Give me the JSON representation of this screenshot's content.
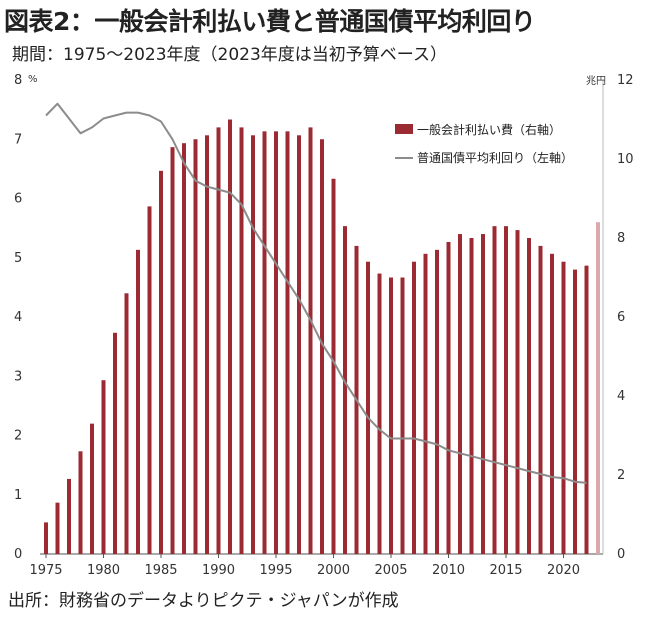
{
  "header": {
    "title": "図表2：一般会計利払い費と普通国債平均利回り",
    "subtitle": "期間：1975～2023年度（2023年度は当初予算ベース）"
  },
  "footer": {
    "source": "出所：財務省のデータよりピクテ・ジャパンが作成"
  },
  "chart_data": {
    "type": "bar",
    "left_axis": {
      "unit": "%",
      "min": 0,
      "max": 8,
      "ticks": [
        "0",
        "1",
        "2",
        "3",
        "4",
        "5",
        "6",
        "7",
        "8"
      ]
    },
    "right_axis": {
      "unit": "兆円",
      "min": 0,
      "max": 12,
      "ticks": [
        "0",
        "2",
        "4",
        "6",
        "8",
        "10",
        "12"
      ]
    },
    "x_ticks": [
      "1975",
      "1980",
      "1985",
      "1990",
      "1995",
      "2000",
      "2005",
      "2010",
      "2015",
      "2020"
    ],
    "legend_placement": "top-right",
    "colors": {
      "bar": "#9b2a33",
      "bar_forecast": "#dba9ad",
      "line": "#8c8c8c"
    },
    "grid": false,
    "series": [
      {
        "name": "一般会計利払い費（右軸）",
        "type": "bar",
        "axis": "right",
        "x": [
          1975,
          1976,
          1977,
          1978,
          1979,
          1980,
          1981,
          1982,
          1983,
          1984,
          1985,
          1986,
          1987,
          1988,
          1989,
          1990,
          1991,
          1992,
          1993,
          1994,
          1995,
          1996,
          1997,
          1998,
          1999,
          2000,
          2001,
          2002,
          2003,
          2004,
          2005,
          2006,
          2007,
          2008,
          2009,
          2010,
          2011,
          2012,
          2013,
          2014,
          2015,
          2016,
          2017,
          2018,
          2019,
          2020,
          2021,
          2022,
          2023
        ],
        "values": [
          0.8,
          1.3,
          1.9,
          2.6,
          3.3,
          4.4,
          5.6,
          6.6,
          7.7,
          8.8,
          9.7,
          10.3,
          10.4,
          10.5,
          10.6,
          10.8,
          11.0,
          10.8,
          10.6,
          10.7,
          10.7,
          10.7,
          10.6,
          10.8,
          10.5,
          9.5,
          8.3,
          7.8,
          7.4,
          7.1,
          7.0,
          7.0,
          7.4,
          7.6,
          7.7,
          7.9,
          8.1,
          8.0,
          8.1,
          8.3,
          8.3,
          8.2,
          8.0,
          7.8,
          7.6,
          7.4,
          7.2,
          7.3,
          8.4
        ],
        "note": "2023年度は当初予算ベース"
      },
      {
        "name": "普通国債平均利回り（左軸）",
        "type": "line",
        "axis": "left",
        "x": [
          1975,
          1976,
          1977,
          1978,
          1979,
          1980,
          1981,
          1982,
          1983,
          1984,
          1985,
          1986,
          1987,
          1988,
          1989,
          1990,
          1991,
          1992,
          1993,
          1994,
          1995,
          1996,
          1997,
          1998,
          1999,
          2000,
          2001,
          2002,
          2003,
          2004,
          2005,
          2006,
          2007,
          2008,
          2009,
          2010,
          2011,
          2012,
          2013,
          2014,
          2015,
          2016,
          2017,
          2018,
          2019,
          2020,
          2021,
          2022
        ],
        "values": [
          7.4,
          7.6,
          7.35,
          7.1,
          7.2,
          7.35,
          7.4,
          7.45,
          7.45,
          7.4,
          7.3,
          7.0,
          6.6,
          6.3,
          6.2,
          6.15,
          6.1,
          5.9,
          5.5,
          5.2,
          4.9,
          4.6,
          4.3,
          3.95,
          3.55,
          3.25,
          2.9,
          2.6,
          2.3,
          2.1,
          1.95,
          1.95,
          1.95,
          1.9,
          1.85,
          1.75,
          1.7,
          1.65,
          1.6,
          1.55,
          1.5,
          1.45,
          1.4,
          1.35,
          1.3,
          1.28,
          1.22,
          1.2
        ]
      }
    ]
  }
}
